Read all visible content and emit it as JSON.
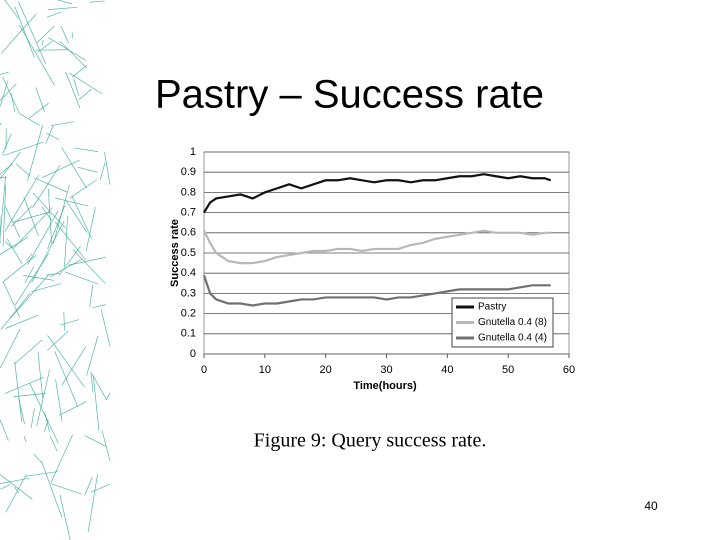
{
  "slide_title": "Pastry – Success rate",
  "caption": "Figure 9: Query success rate.",
  "page_number": "40",
  "chart_data": {
    "type": "line",
    "xlabel": "Time(hours)",
    "ylabel": "Success rate",
    "x": [
      0,
      1,
      2,
      4,
      6,
      8,
      10,
      12,
      14,
      16,
      18,
      20,
      22,
      24,
      26,
      28,
      30,
      32,
      34,
      36,
      38,
      40,
      42,
      44,
      46,
      48,
      50,
      52,
      54,
      56,
      57
    ],
    "series": [
      {
        "name": "Pastry",
        "color": "#111111",
        "values": [
          0.7,
          0.75,
          0.77,
          0.78,
          0.79,
          0.77,
          0.8,
          0.82,
          0.84,
          0.82,
          0.84,
          0.86,
          0.86,
          0.87,
          0.86,
          0.85,
          0.86,
          0.86,
          0.85,
          0.86,
          0.86,
          0.87,
          0.88,
          0.88,
          0.89,
          0.88,
          0.87,
          0.88,
          0.87,
          0.87,
          0.86
        ]
      },
      {
        "name": "Gnutella 0.4 (8)",
        "color": "#b8b8b8",
        "values": [
          0.61,
          0.55,
          0.5,
          0.46,
          0.45,
          0.45,
          0.46,
          0.48,
          0.49,
          0.5,
          0.51,
          0.51,
          0.52,
          0.52,
          0.51,
          0.52,
          0.52,
          0.52,
          0.54,
          0.55,
          0.57,
          0.58,
          0.59,
          0.6,
          0.61,
          0.6,
          0.6,
          0.6,
          0.59,
          0.6,
          0.6
        ]
      },
      {
        "name": "Gnutella 0.4 (4)",
        "color": "#707070",
        "values": [
          0.39,
          0.3,
          0.27,
          0.25,
          0.25,
          0.24,
          0.25,
          0.25,
          0.26,
          0.27,
          0.27,
          0.28,
          0.28,
          0.28,
          0.28,
          0.28,
          0.27,
          0.28,
          0.28,
          0.29,
          0.3,
          0.31,
          0.32,
          0.32,
          0.32,
          0.32,
          0.32,
          0.33,
          0.34,
          0.34,
          0.34
        ]
      }
    ],
    "xlim": [
      0,
      60
    ],
    "xticks": [
      0,
      10,
      20,
      30,
      40,
      50,
      60
    ],
    "ylim": [
      0,
      1
    ],
    "yticks": [
      0,
      0.1,
      0.2,
      0.3,
      0.4,
      0.5,
      0.6,
      0.7,
      0.8,
      0.9,
      1
    ],
    "grid": true,
    "legend": "lower right"
  }
}
